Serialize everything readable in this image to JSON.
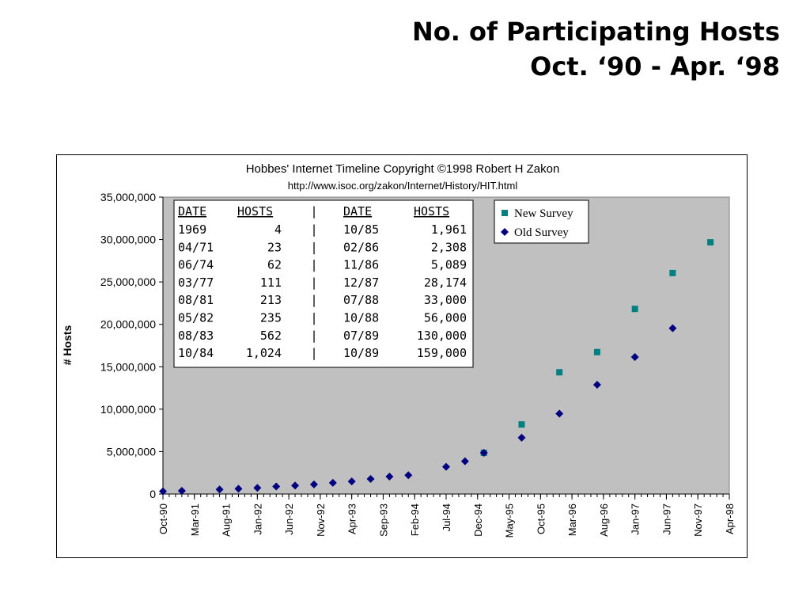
{
  "slide": {
    "title_line1": "No. of Participating Hosts",
    "title_line2": "Oct. ‘90 - Apr. ‘98"
  },
  "chart_data": {
    "type": "scatter",
    "title": "Hobbes' Internet Timeline Copyright ©1998 Robert H Zakon",
    "subtitle": "http://www.isoc.org/zakon/Internet/History/HIT.html",
    "xlabel": "",
    "ylabel": "# Hosts",
    "ylim": [
      0,
      35000000
    ],
    "yticks": [
      {
        "value": 0,
        "label": "0"
      },
      {
        "value": 5000000,
        "label": "5,000,000"
      },
      {
        "value": 10000000,
        "label": "10,000,000"
      },
      {
        "value": 15000000,
        "label": "15,000,000"
      },
      {
        "value": 20000000,
        "label": "20,000,000"
      },
      {
        "value": 25000000,
        "label": "25,000,000"
      },
      {
        "value": 30000000,
        "label": "30,000,000"
      },
      {
        "value": 35000000,
        "label": "35,000,000"
      }
    ],
    "xlim": [
      "1990-10",
      "1998-04"
    ],
    "xticks": [
      "Oct-90",
      "Mar-91",
      "Aug-91",
      "Jan-92",
      "Jun-92",
      "Nov-92",
      "Apr-93",
      "Sep-93",
      "Feb-94",
      "Jul-94",
      "Dec-94",
      "May-95",
      "Oct-95",
      "Mar-96",
      "Aug-96",
      "Jan-97",
      "Jun-97",
      "Nov-97",
      "Apr-98"
    ],
    "grid": false,
    "legend_position": "top-right",
    "colors": {
      "plot_bg": "#c0c0c0",
      "new_survey": "#008080",
      "old_survey": "#000080"
    },
    "series": [
      {
        "name": "New Survey",
        "marker": "square",
        "points": [
          {
            "x": "1995-01",
            "y": 4850000
          },
          {
            "x": "1995-07",
            "y": 8200000
          },
          {
            "x": "1996-01",
            "y": 14350000
          },
          {
            "x": "1996-07",
            "y": 16730000
          },
          {
            "x": "1997-01",
            "y": 21820000
          },
          {
            "x": "1997-07",
            "y": 26050000
          },
          {
            "x": "1998-01",
            "y": 29670000
          }
        ]
      },
      {
        "name": "Old Survey",
        "marker": "diamond",
        "points": [
          {
            "x": "1990-10",
            "y": 313000
          },
          {
            "x": "1991-01",
            "y": 376000
          },
          {
            "x": "1991-07",
            "y": 535000
          },
          {
            "x": "1991-10",
            "y": 617000
          },
          {
            "x": "1992-01",
            "y": 727000
          },
          {
            "x": "1992-04",
            "y": 890000
          },
          {
            "x": "1992-07",
            "y": 992000
          },
          {
            "x": "1992-10",
            "y": 1136000
          },
          {
            "x": "1993-01",
            "y": 1313000
          },
          {
            "x": "1993-04",
            "y": 1486000
          },
          {
            "x": "1993-07",
            "y": 1776000
          },
          {
            "x": "1993-10",
            "y": 2056000
          },
          {
            "x": "1994-01",
            "y": 2217000
          },
          {
            "x": "1994-07",
            "y": 3212000
          },
          {
            "x": "1994-10",
            "y": 3864000
          },
          {
            "x": "1995-01",
            "y": 4852000
          },
          {
            "x": "1995-07",
            "y": 6642000
          },
          {
            "x": "1996-01",
            "y": 9472000
          },
          {
            "x": "1996-07",
            "y": 12881000
          },
          {
            "x": "1997-01",
            "y": 16146000
          },
          {
            "x": "1997-07",
            "y": 19540000
          }
        ]
      }
    ],
    "inset_table": {
      "headers": [
        "DATE",
        "HOSTS",
        "|",
        "DATE",
        "HOSTS"
      ],
      "rows": [
        [
          "1969",
          "4",
          "|",
          "10/85",
          "1,961"
        ],
        [
          "04/71",
          "23",
          "|",
          "02/86",
          "2,308"
        ],
        [
          "06/74",
          "62",
          "|",
          "11/86",
          "5,089"
        ],
        [
          "03/77",
          "111",
          "|",
          "12/87",
          "28,174"
        ],
        [
          "08/81",
          "213",
          "|",
          "07/88",
          "33,000"
        ],
        [
          "05/82",
          "235",
          "|",
          "10/88",
          "56,000"
        ],
        [
          "08/83",
          "562",
          "|",
          "07/89",
          "130,000"
        ],
        [
          "10/84",
          "1,024",
          "|",
          "10/89",
          "159,000"
        ]
      ]
    }
  }
}
